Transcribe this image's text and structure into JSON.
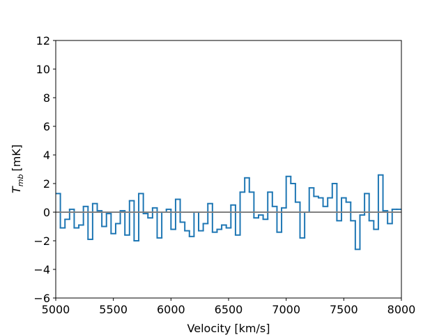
{
  "chart_data": {
    "type": "step",
    "xlabel": "Velocity [km/s]",
    "ylabel_symbol": "T",
    "ylabel_subscript": "mb",
    "ylabel_unit": "[mK]",
    "x": [
      5000,
      5040,
      5080,
      5120,
      5160,
      5200,
      5240,
      5280,
      5320,
      5360,
      5400,
      5440,
      5480,
      5520,
      5560,
      5600,
      5640,
      5680,
      5720,
      5760,
      5800,
      5840,
      5880,
      5920,
      5960,
      6000,
      6040,
      6080,
      6120,
      6160,
      6200,
      6240,
      6280,
      6320,
      6360,
      6400,
      6440,
      6480,
      6520,
      6560,
      6600,
      6640,
      6680,
      6720,
      6760,
      6800,
      6840,
      6880,
      6920,
      6960,
      7000,
      7040,
      7080,
      7120,
      7160,
      7200,
      7240,
      7280,
      7320,
      7360,
      7400,
      7440,
      7480,
      7520,
      7560,
      7600,
      7640,
      7680,
      7720,
      7760,
      7800,
      7840,
      7880,
      7920,
      7960
    ],
    "series": [
      {
        "color": "#1f77b4",
        "values": [
          1.3,
          -1.1,
          -0.5,
          0.2,
          -1.1,
          -0.9,
          0.4,
          -1.9,
          0.6,
          0.1,
          -1.0,
          -0.1,
          -1.5,
          -0.8,
          0.1,
          -1.6,
          0.8,
          -2.0,
          1.3,
          -0.1,
          -0.4,
          0.3,
          -1.8,
          0.0,
          0.2,
          -1.2,
          0.9,
          -0.7,
          -1.3,
          -1.7,
          0.0,
          -1.3,
          -0.8,
          0.6,
          -1.4,
          -1.2,
          -0.9,
          -1.1,
          0.5,
          -1.6,
          1.4,
          2.4,
          1.4,
          -0.4,
          -0.2,
          -0.5,
          1.4,
          0.4,
          -1.4,
          0.3,
          2.5,
          2.0,
          0.7,
          -1.8,
          0.0,
          1.7,
          1.1,
          1.0,
          0.4,
          1.0,
          2.0,
          -0.6,
          1.0,
          0.7,
          -0.6,
          -2.6,
          -0.2,
          1.3,
          -0.6,
          -1.2,
          2.6,
          0.1,
          -0.8,
          0.2,
          0.2
        ]
      }
    ],
    "baseline_color": "#808080",
    "xlim": [
      5000,
      8000
    ],
    "ylim": [
      -6,
      12
    ],
    "xticks": [
      5000,
      5500,
      6000,
      6500,
      7000,
      7500,
      8000
    ],
    "yticks": [
      {
        "value": -6,
        "label": "−6"
      },
      {
        "value": -4,
        "label": "−4"
      },
      {
        "value": -2,
        "label": "−2"
      },
      0,
      2,
      4,
      6,
      8,
      10,
      12
    ]
  }
}
